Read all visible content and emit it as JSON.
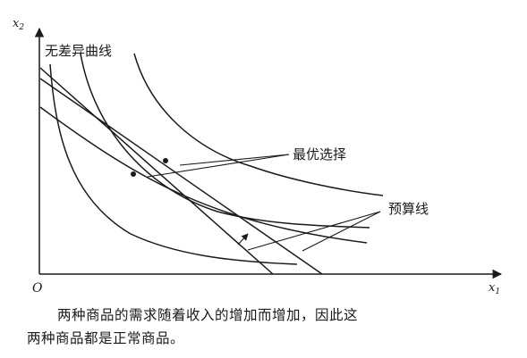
{
  "figure": {
    "axis_y_label": "x",
    "axis_y_sub": "2",
    "axis_x_label": "x",
    "axis_x_sub": "1",
    "origin": "O",
    "indifference_label": "无差异曲线",
    "optimal_label": "最优选择",
    "budget_label": "预算线"
  },
  "caption": {
    "line1": "两种商品的需求随着收入的增加而增加，因此这",
    "line2": "两种商品都是正常商品。"
  }
}
